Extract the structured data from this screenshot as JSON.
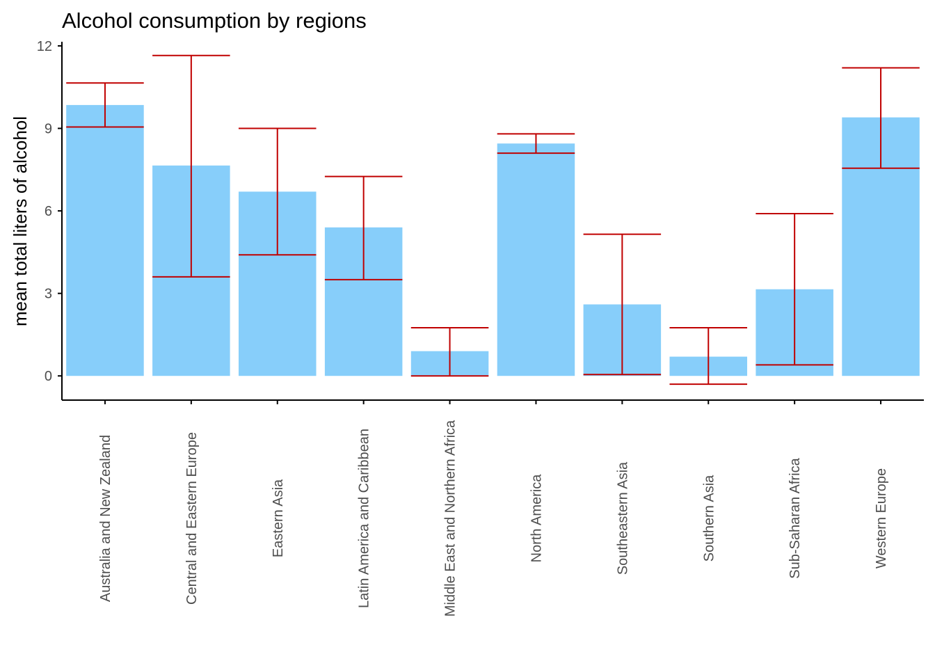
{
  "chart_data": {
    "type": "bar",
    "title": "Alcohol consumption by regions",
    "xlabel": "",
    "ylabel": "mean total liters of alcohol",
    "ylim": [
      -0.88,
      12.15
    ],
    "yticks": [
      0,
      3,
      6,
      9,
      12
    ],
    "categories": [
      "Australia and New Zealand",
      "Central and Eastern Europe",
      "Eastern Asia",
      "Latin America and Caribbean",
      "Middle East and Northern Africa",
      "North America",
      "Southeastern Asia",
      "Southern Asia",
      "Sub-Saharan Africa",
      "Western Europe"
    ],
    "values": [
      9.85,
      7.65,
      6.7,
      5.4,
      0.9,
      8.45,
      2.6,
      0.7,
      3.15,
      9.4
    ],
    "error_low": [
      9.05,
      3.6,
      4.4,
      3.5,
      0.0,
      8.1,
      0.05,
      -0.3,
      0.4,
      7.55
    ],
    "error_high": [
      10.65,
      11.65,
      9.0,
      7.25,
      1.75,
      8.8,
      5.15,
      1.75,
      5.9,
      11.2
    ],
    "colors": {
      "bar": "#87CEFA",
      "error": "#C00000",
      "axis": "#000000",
      "tick_text": "#4d4d4d"
    }
  }
}
